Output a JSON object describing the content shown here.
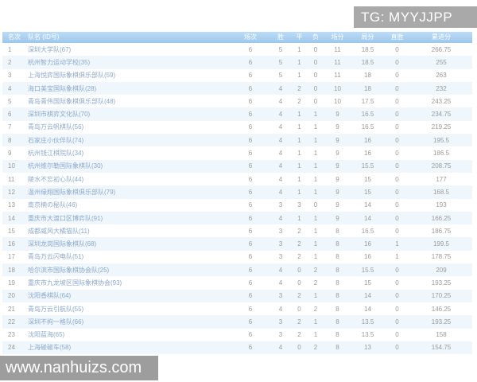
{
  "badge": {
    "text": "TG: MYYJJPP"
  },
  "watermark": {
    "text": "www.nanhuizs.com"
  },
  "colors": {
    "header_bg_top": "#bcdcf6",
    "header_bg_bottom": "#9cc7ec",
    "row_alt_bg": "#eff6fc",
    "team_text": "#8ba9cb",
    "number_text": "#9a9a9a",
    "badge_bg": "#a9a9a9",
    "watermark_bg": "#9d9d9d"
  },
  "table": {
    "columns": [
      "名次",
      "队名 (ID号)",
      "场次",
      "胜",
      "平",
      "负",
      "场分",
      "局分",
      "直胜",
      "累进分"
    ],
    "column_keys": [
      "rank",
      "team",
      "played",
      "win",
      "draw",
      "loss",
      "match_points",
      "game_points",
      "tiebreak",
      "cumulative"
    ],
    "rows": [
      {
        "rank": "1",
        "team": "深圳大学队(67)",
        "played": "6",
        "win": "5",
        "draw": "1",
        "loss": "0",
        "match_points": "11",
        "game_points": "18.5",
        "tiebreak": "0",
        "cumulative": "266.75"
      },
      {
        "rank": "2",
        "team": "杭州智力运动学校(35)",
        "played": "6",
        "win": "5",
        "draw": "1",
        "loss": "0",
        "match_points": "11",
        "game_points": "18.5",
        "tiebreak": "0",
        "cumulative": "255"
      },
      {
        "rank": "3",
        "team": "上海悦弈国际象棋俱乐部队(59)",
        "played": "6",
        "win": "5",
        "draw": "1",
        "loss": "0",
        "match_points": "11",
        "game_points": "18",
        "tiebreak": "0",
        "cumulative": "263"
      },
      {
        "rank": "4",
        "team": "海口美宝国际象棋队(28)",
        "played": "6",
        "win": "4",
        "draw": "2",
        "loss": "0",
        "match_points": "10",
        "game_points": "18",
        "tiebreak": "0",
        "cumulative": "232"
      },
      {
        "rank": "5",
        "team": "青岛青伟国际象棋俱乐部队(48)",
        "played": "6",
        "win": "4",
        "draw": "2",
        "loss": "0",
        "match_points": "10",
        "game_points": "17.5",
        "tiebreak": "0",
        "cumulative": "243.25"
      },
      {
        "rank": "6",
        "team": "深圳市棋弈文化队(70)",
        "played": "6",
        "win": "4",
        "draw": "1",
        "loss": "1",
        "match_points": "9",
        "game_points": "16.5",
        "tiebreak": "0",
        "cumulative": "234.75"
      },
      {
        "rank": "7",
        "team": "青岛万云帆棋队(56)",
        "played": "6",
        "win": "4",
        "draw": "1",
        "loss": "1",
        "match_points": "9",
        "game_points": "16.5",
        "tiebreak": "0",
        "cumulative": "219.25"
      },
      {
        "rank": "8",
        "team": "石家庄小伙伴队(74)",
        "played": "6",
        "win": "4",
        "draw": "1",
        "loss": "1",
        "match_points": "9",
        "game_points": "16",
        "tiebreak": "0",
        "cumulative": "195.5"
      },
      {
        "rank": "9",
        "team": "杭州钱江棋院队(34)",
        "played": "6",
        "win": "4",
        "draw": "1",
        "loss": "1",
        "match_points": "9",
        "game_points": "16",
        "tiebreak": "0",
        "cumulative": "186.5"
      },
      {
        "rank": "10",
        "team": "杭州维尔勒国际象棋队(30)",
        "played": "6",
        "win": "4",
        "draw": "1",
        "loss": "1",
        "match_points": "9",
        "game_points": "15.5",
        "tiebreak": "0",
        "cumulative": "208.75"
      },
      {
        "rank": "11",
        "team": "陵水不忘初心队(44)",
        "played": "6",
        "win": "4",
        "draw": "1",
        "loss": "1",
        "match_points": "9",
        "game_points": "15",
        "tiebreak": "0",
        "cumulative": "177"
      },
      {
        "rank": "12",
        "team": "温州缘翔国际象棋俱乐部队(79)",
        "played": "6",
        "win": "4",
        "draw": "1",
        "loss": "1",
        "match_points": "9",
        "game_points": "15",
        "tiebreak": "0",
        "cumulative": "168.5"
      },
      {
        "rank": "13",
        "team": "南京楠の秘队(46)",
        "played": "6",
        "win": "3",
        "draw": "3",
        "loss": "0",
        "match_points": "9",
        "game_points": "14",
        "tiebreak": "0",
        "cumulative": "193"
      },
      {
        "rank": "14",
        "team": "重庆市大渡口区博弈队(91)",
        "played": "6",
        "win": "4",
        "draw": "1",
        "loss": "1",
        "match_points": "9",
        "game_points": "14",
        "tiebreak": "0",
        "cumulative": "166.25"
      },
      {
        "rank": "15",
        "team": "成都威风大橘猫队(11)",
        "played": "6",
        "win": "3",
        "draw": "2",
        "loss": "1",
        "match_points": "8",
        "game_points": "16.5",
        "tiebreak": "0",
        "cumulative": "186.75"
      },
      {
        "rank": "16",
        "team": "深圳龙岗国际象棋队(68)",
        "played": "6",
        "win": "3",
        "draw": "2",
        "loss": "1",
        "match_points": "8",
        "game_points": "16",
        "tiebreak": "1",
        "cumulative": "199.5"
      },
      {
        "rank": "17",
        "team": "青岛万云闪电队(51)",
        "played": "6",
        "win": "3",
        "draw": "2",
        "loss": "1",
        "match_points": "8",
        "game_points": "16",
        "tiebreak": "1",
        "cumulative": "178.75"
      },
      {
        "rank": "18",
        "team": "哈尔滨市国际象棋协会队(25)",
        "played": "6",
        "win": "4",
        "draw": "0",
        "loss": "2",
        "match_points": "8",
        "game_points": "15.5",
        "tiebreak": "0",
        "cumulative": "209"
      },
      {
        "rank": "19",
        "team": "重庆市九龙坡区国际象棋协会(93)",
        "played": "6",
        "win": "4",
        "draw": "0",
        "loss": "2",
        "match_points": "8",
        "game_points": "15",
        "tiebreak": "0",
        "cumulative": "193.25"
      },
      {
        "rank": "20",
        "team": "沈阳香棋队(64)",
        "played": "6",
        "win": "3",
        "draw": "2",
        "loss": "1",
        "match_points": "8",
        "game_points": "14",
        "tiebreak": "0",
        "cumulative": "170.25"
      },
      {
        "rank": "21",
        "team": "青岛万云引航队(55)",
        "played": "6",
        "win": "4",
        "draw": "0",
        "loss": "2",
        "match_points": "8",
        "game_points": "14",
        "tiebreak": "0",
        "cumulative": "146.25"
      },
      {
        "rank": "22",
        "team": "深圳不拘一格队(66)",
        "played": "6",
        "win": "3",
        "draw": "2",
        "loss": "1",
        "match_points": "8",
        "game_points": "13.5",
        "tiebreak": "0",
        "cumulative": "193.25"
      },
      {
        "rank": "23",
        "team": "沈阳蓝海(65)",
        "played": "6",
        "win": "3",
        "draw": "2",
        "loss": "1",
        "match_points": "8",
        "game_points": "13.5",
        "tiebreak": "0",
        "cumulative": "158"
      },
      {
        "rank": "24",
        "team": "上海碰碰车(58)",
        "played": "6",
        "win": "4",
        "draw": "0",
        "loss": "2",
        "match_points": "8",
        "game_points": "13",
        "tiebreak": "0",
        "cumulative": "154.75"
      }
    ]
  }
}
